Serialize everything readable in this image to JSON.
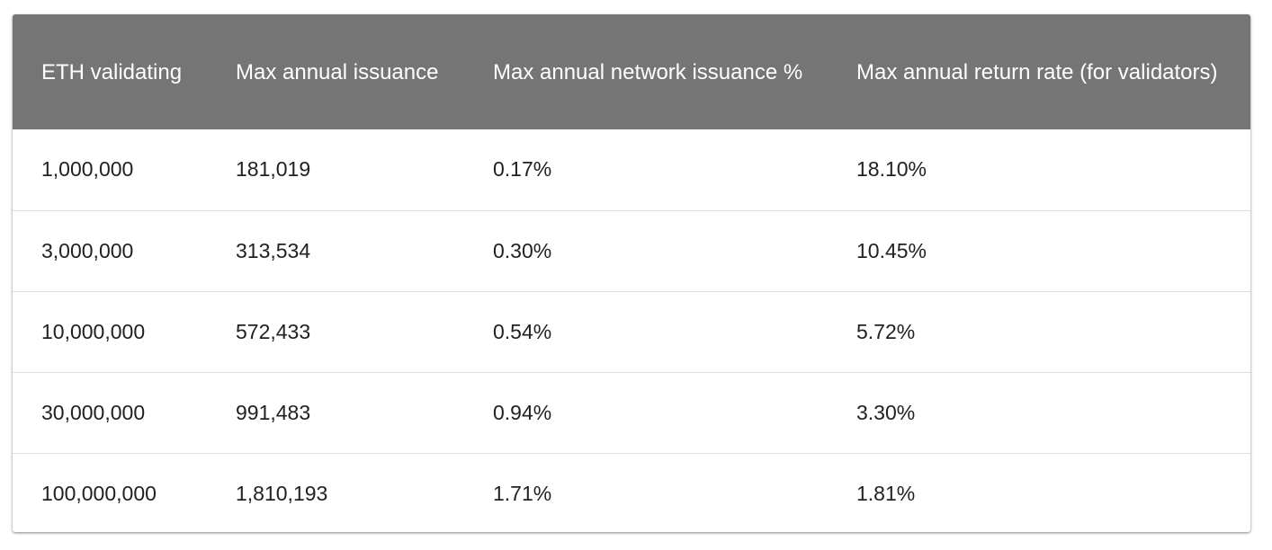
{
  "table": {
    "headers": [
      "ETH validating",
      "Max annual issuance",
      "Max annual network issuance %",
      "Max annual return rate (for validators)"
    ],
    "rows": [
      [
        "1,000,000",
        "181,019",
        "0.17%",
        "18.10%"
      ],
      [
        "3,000,000",
        "313,534",
        "0.30%",
        "10.45%"
      ],
      [
        "10,000,000",
        "572,433",
        "0.54%",
        "5.72%"
      ],
      [
        "30,000,000",
        "991,483",
        "0.94%",
        "3.30%"
      ],
      [
        "100,000,000",
        "1,810,193",
        "1.71%",
        "1.81%"
      ]
    ]
  },
  "colors": {
    "header_background": "#757575",
    "header_text": "#ffffff",
    "row_divider": "#e0e0e0",
    "body_text": "#212121"
  }
}
